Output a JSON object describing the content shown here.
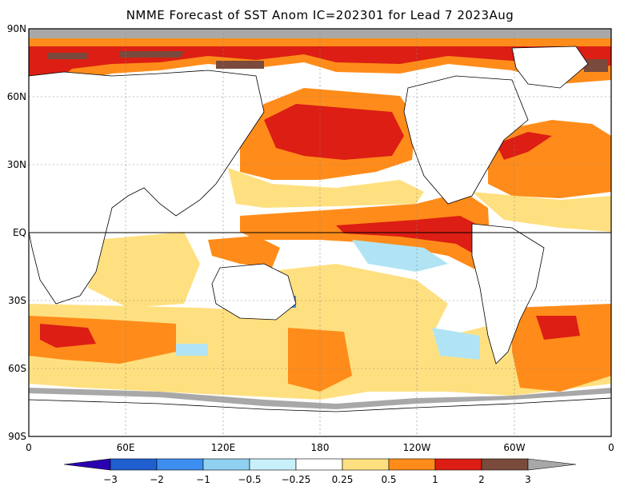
{
  "title": "NMME Forecast of SST Anom IC=202301 for Lead 7 2023Aug",
  "map": {
    "lat_ticks": [
      "90N",
      "60N",
      "30N",
      "EQ",
      "30S",
      "60S",
      "90S"
    ],
    "lon_ticks": [
      "0",
      "60E",
      "120E",
      "180",
      "120W",
      "60W",
      "0"
    ]
  },
  "colorbar": {
    "labels": [
      "−3",
      "−2",
      "−1",
      "−0.5",
      "−0.25",
      "0.25",
      "0.5",
      "1",
      "2",
      "3"
    ],
    "colors": [
      "#2a00b0",
      "#1f5fd0",
      "#3c8ef0",
      "#90d0f0",
      "#c8f0fa",
      "#ffffff",
      "#ffe080",
      "#ff8c1a",
      "#dc1e14",
      "#7a4a3c",
      "#a8a8a8"
    ]
  },
  "palette": {
    "strong_red": "#dc1e14",
    "orange": "#ff8c1a",
    "yellow": "#ffe080",
    "light_blue": "#b0e4f4",
    "blue": "#3c8ef0",
    "brown": "#7a4a3c",
    "gray": "#a8a8a8"
  }
}
